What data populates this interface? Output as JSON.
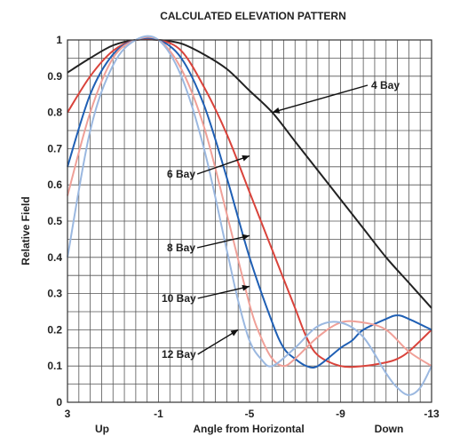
{
  "chart_data": {
    "type": "line",
    "title": "CALCULATED ELEVATION PATTERN",
    "xlabel": "Angle from Horizontal",
    "ylabel": "Relative Field",
    "xlim": [
      3,
      -13
    ],
    "ylim": [
      0,
      1
    ],
    "grid": true,
    "xticks": [
      3,
      -1,
      -5,
      -9,
      -13
    ],
    "xtick_labels": [
      "3",
      "-1",
      "-5",
      "-9",
      "-13"
    ],
    "yticks": [
      0,
      0.1,
      0.2,
      0.3,
      0.4,
      0.5,
      0.6,
      0.7,
      0.8,
      0.9,
      1
    ],
    "ytick_labels": [
      "0",
      "0.1",
      "0.2",
      "0.3",
      "0.4",
      "0.5",
      "0.6",
      "0.7",
      "0.8",
      "0.9",
      "1"
    ],
    "direction_labels": {
      "left": "Up",
      "right": "Down"
    },
    "series": [
      {
        "name": "4 Bay",
        "color": "#222222",
        "x": [
          3,
          2,
          1,
          0,
          -1,
          -2,
          -3,
          -4,
          -5,
          -6,
          -7,
          -8,
          -9,
          -10,
          -11,
          -12,
          -13
        ],
        "y": [
          0.91,
          0.95,
          0.985,
          1.0,
          1.0,
          0.99,
          0.96,
          0.92,
          0.86,
          0.8,
          0.72,
          0.64,
          0.56,
          0.48,
          0.4,
          0.33,
          0.26
        ]
      },
      {
        "name": "6 Bay",
        "color": "#d9433b",
        "x": [
          3,
          2,
          1,
          0,
          -1,
          -2,
          -3,
          -4,
          -5,
          -6,
          -7,
          -7.5,
          -8,
          -9,
          -10,
          -11,
          -11.5,
          -12,
          -13
        ],
        "y": [
          0.8,
          0.9,
          0.97,
          1.0,
          1.0,
          0.97,
          0.87,
          0.74,
          0.58,
          0.42,
          0.26,
          0.18,
          0.13,
          0.1,
          0.1,
          0.11,
          0.12,
          0.14,
          0.2
        ]
      },
      {
        "name": "8 Bay",
        "color": "#1f5fb4",
        "x": [
          3,
          2,
          1,
          0,
          -1,
          -2,
          -3,
          -4,
          -5,
          -6,
          -6.5,
          -7,
          -7.5,
          -8,
          -9,
          -9.5,
          -10,
          -11,
          -11.5,
          -12,
          -13
        ],
        "y": [
          0.65,
          0.85,
          0.96,
          1.0,
          1.0,
          0.95,
          0.82,
          0.62,
          0.4,
          0.22,
          0.15,
          0.12,
          0.1,
          0.1,
          0.15,
          0.17,
          0.2,
          0.23,
          0.24,
          0.23,
          0.2
        ]
      },
      {
        "name": "10 Bay",
        "color": "#f0a098",
        "x": [
          3,
          2,
          1,
          0,
          -1,
          -2,
          -3,
          -4,
          -5,
          -5.5,
          -6,
          -6.5,
          -7,
          -8,
          -9,
          -10,
          -11,
          -12,
          -13
        ],
        "y": [
          0.57,
          0.8,
          0.95,
          1.0,
          1.0,
          0.92,
          0.76,
          0.52,
          0.27,
          0.18,
          0.12,
          0.1,
          0.12,
          0.18,
          0.22,
          0.22,
          0.2,
          0.14,
          0.1
        ]
      },
      {
        "name": "12 Bay",
        "color": "#9bb8e0",
        "x": [
          3,
          2,
          1,
          0,
          -1,
          -2,
          -3,
          -4,
          -4.5,
          -5,
          -5.5,
          -6,
          -7,
          -8,
          -9,
          -10,
          -11,
          -11.5,
          -12,
          -12.5,
          -13
        ],
        "y": [
          0.4,
          0.75,
          0.93,
          1.0,
          1.0,
          0.9,
          0.7,
          0.42,
          0.28,
          0.17,
          0.12,
          0.1,
          0.15,
          0.21,
          0.22,
          0.18,
          0.08,
          0.04,
          0.02,
          0.04,
          0.1
        ]
      }
    ],
    "annotations": [
      {
        "text": "4 Bay",
        "series": "4 Bay",
        "arrow_to": [
          -6,
          0.8
        ]
      },
      {
        "text": "6 Bay",
        "series": "6 Bay",
        "arrow_to": [
          -5,
          0.68
        ]
      },
      {
        "text": "8 Bay",
        "series": "8 Bay",
        "arrow_to": [
          -5,
          0.46
        ]
      },
      {
        "text": "10 Bay",
        "series": "10 Bay",
        "arrow_to": [
          -5,
          0.32
        ]
      },
      {
        "text": "12 Bay",
        "series": "12 Bay",
        "arrow_to": [
          -4.5,
          0.2
        ]
      }
    ]
  }
}
